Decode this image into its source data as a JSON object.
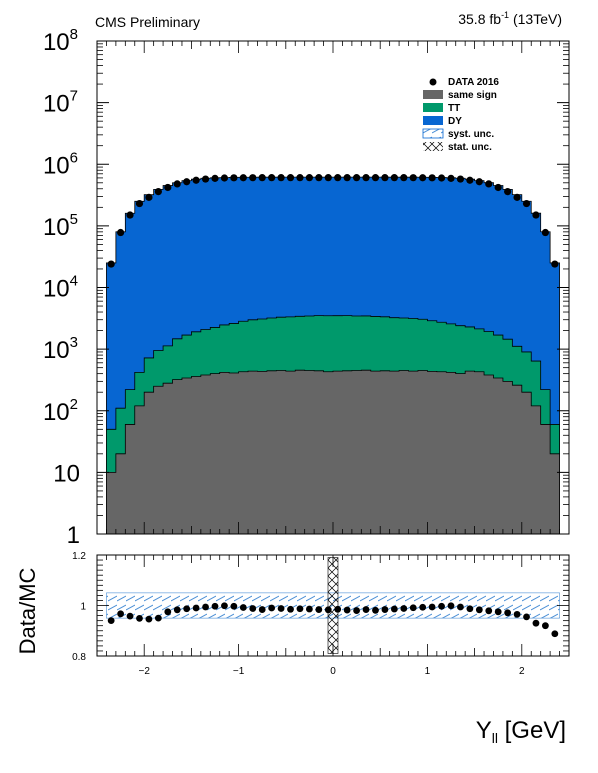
{
  "header": {
    "left": "CMS Preliminary",
    "lumi_value": "35.8 fb",
    "lumi_exp": "-1",
    "lumi_tail": " (13TeV)"
  },
  "chart_data": [
    {
      "type": "area",
      "panel": "main",
      "yscale": "log",
      "ylim": [
        1,
        100000000
      ],
      "xlim": [
        -2.5,
        2.5
      ],
      "y_ticks": [
        {
          "label": "1",
          "exp": "",
          "value": 1
        },
        {
          "label": "10",
          "exp": "",
          "value": 10
        },
        {
          "label": "10",
          "exp": "2",
          "value": 100
        },
        {
          "label": "10",
          "exp": "3",
          "value": 1000
        },
        {
          "label": "10",
          "exp": "4",
          "value": 10000
        },
        {
          "label": "10",
          "exp": "5",
          "value": 100000
        },
        {
          "label": "10",
          "exp": "6",
          "value": 1000000
        },
        {
          "label": "10",
          "exp": "7",
          "value": 10000000
        },
        {
          "label": "10",
          "exp": "8",
          "value": 100000000
        }
      ],
      "bin_edges_range": [
        -2.4,
        2.4
      ],
      "n_bins": 48,
      "legend_position": "top-right",
      "legend": [
        {
          "label": "DATA 2016",
          "style": "marker",
          "color": "#000000"
        },
        {
          "label": "same sign",
          "style": "fill",
          "color": "#666666"
        },
        {
          "label": "TT",
          "style": "fill",
          "color": "#00996b"
        },
        {
          "label": "DY",
          "style": "fill",
          "color": "#0766d2"
        },
        {
          "label": "syst. unc.",
          "style": "hatch",
          "color": "#4b8fd6"
        },
        {
          "label": "stat. unc.",
          "style": "crosshatch",
          "color": "#000000"
        }
      ],
      "series": [
        {
          "name": "same sign",
          "color": "#666666",
          "values": [
            10,
            20,
            60,
            120,
            200,
            250,
            280,
            320,
            340,
            360,
            380,
            400,
            420,
            410,
            430,
            440,
            435,
            445,
            450,
            440,
            455,
            450,
            445,
            430,
            440,
            445,
            450,
            455,
            440,
            445,
            440,
            450,
            440,
            450,
            435,
            430,
            420,
            400,
            440,
            430,
            380,
            340,
            300,
            260,
            200,
            120,
            60,
            20
          ]
        },
        {
          "name": "TT",
          "color": "#00996b",
          "values": [
            40,
            90,
            160,
            300,
            520,
            700,
            850,
            1150,
            1350,
            1550,
            1700,
            1850,
            2050,
            2200,
            2400,
            2550,
            2650,
            2750,
            2850,
            2900,
            2950,
            3000,
            3050,
            3050,
            3050,
            3050,
            3000,
            3000,
            2950,
            2900,
            2800,
            2750,
            2700,
            2600,
            2450,
            2300,
            2150,
            2000,
            1850,
            1700,
            1550,
            1350,
            1150,
            850,
            700,
            520,
            160,
            40
          ]
        },
        {
          "name": "DY",
          "color": "#0766d2",
          "values": [
            25000,
            80000,
            160000,
            250000,
            320000,
            390000,
            450000,
            500000,
            540000,
            570000,
            590000,
            600000,
            605000,
            610000,
            612000,
            613000,
            614000,
            614000,
            614000,
            614000,
            614000,
            614000,
            614000,
            614000,
            614000,
            614000,
            614000,
            614000,
            614000,
            614000,
            614000,
            614000,
            613000,
            612000,
            610000,
            605000,
            600000,
            590000,
            570000,
            540000,
            500000,
            450000,
            390000,
            320000,
            250000,
            160000,
            80000,
            25000
          ]
        }
      ],
      "data": {
        "name": "DATA 2016",
        "values": [
          24000,
          78000,
          150000,
          230000,
          290000,
          360000,
          420000,
          480000,
          520000,
          550000,
          575000,
          590000,
          598000,
          602000,
          604000,
          605000,
          606000,
          606000,
          606000,
          606000,
          606000,
          606000,
          606000,
          606000,
          606000,
          606000,
          606000,
          606000,
          606000,
          606000,
          606000,
          606000,
          605000,
          604000,
          602000,
          598000,
          590000,
          575000,
          550000,
          520000,
          480000,
          420000,
          360000,
          290000,
          230000,
          150000,
          78000,
          24000
        ]
      }
    },
    {
      "type": "scatter",
      "panel": "ratio",
      "ylabel": "Data/MC",
      "xlabel": "Y",
      "xlabel_sub": "ll",
      "xlabel_unit": " [GeV]",
      "ylim": [
        0.8,
        1.2
      ],
      "xlim": [
        -2.5,
        2.5
      ],
      "y_ticks": [
        {
          "label": "0.8",
          "value": 0.8
        },
        {
          "label": "1",
          "value": 1.0
        },
        {
          "label": "1.2",
          "value": 1.2
        }
      ],
      "x_ticks": [
        {
          "label": "−2",
          "value": -2
        },
        {
          "label": "−1",
          "value": -1
        },
        {
          "label": "0",
          "value": 0
        },
        {
          "label": "1",
          "value": 1
        },
        {
          "label": "2",
          "value": 2
        }
      ],
      "syst_band": [
        0.95,
        1.05
      ],
      "stat_bar_at": 0,
      "stat_bar_range": [
        0.81,
        1.19
      ],
      "ratio_values": [
        0.94,
        0.967,
        0.958,
        0.949,
        0.946,
        0.95,
        0.975,
        0.983,
        0.987,
        0.99,
        0.994,
        0.997,
        0.999,
        0.997,
        0.992,
        0.988,
        0.984,
        0.99,
        0.988,
        0.985,
        0.987,
        0.986,
        0.984,
        0.983,
        0.985,
        0.982,
        0.98,
        0.984,
        0.981,
        0.984,
        0.986,
        0.988,
        0.991,
        0.993,
        0.994,
        0.997,
        0.999,
        0.994,
        0.987,
        0.983,
        0.979,
        0.975,
        0.971,
        0.965,
        0.955,
        0.93,
        0.92,
        0.888
      ]
    }
  ]
}
